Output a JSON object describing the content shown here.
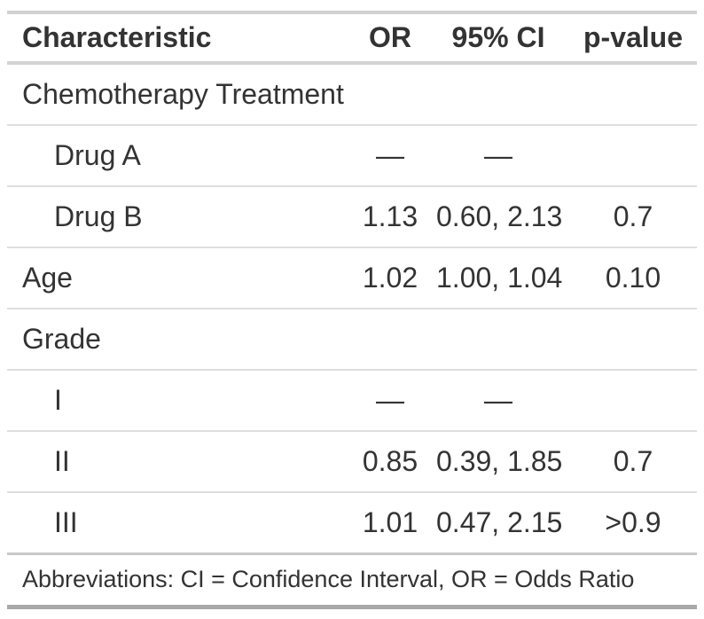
{
  "table": {
    "columns": [
      {
        "label": "Characteristic",
        "align": "left"
      },
      {
        "label": "OR",
        "align": "center"
      },
      {
        "label": "95% CI",
        "align": "center"
      },
      {
        "label": "p-value",
        "align": "center"
      }
    ],
    "rows": [
      {
        "label": "Chemotherapy Treatment",
        "or": "",
        "ci": "",
        "p": "",
        "indent": false,
        "group": true
      },
      {
        "label": "Drug A",
        "or": "—",
        "ci": "—",
        "p": "",
        "indent": true,
        "group": false
      },
      {
        "label": "Drug B",
        "or": "1.13",
        "ci": "0.60, 2.13",
        "p": "0.7",
        "indent": true,
        "group": false
      },
      {
        "label": "Age",
        "or": "1.02",
        "ci": "1.00, 1.04",
        "p": "0.10",
        "indent": false,
        "group": false
      },
      {
        "label": "Grade",
        "or": "",
        "ci": "",
        "p": "",
        "indent": false,
        "group": true
      },
      {
        "label": "I",
        "or": "—",
        "ci": "—",
        "p": "",
        "indent": true,
        "group": false
      },
      {
        "label": "II",
        "or": "0.85",
        "ci": "0.39, 1.85",
        "p": "0.7",
        "indent": true,
        "group": false
      },
      {
        "label": "III",
        "or": "1.01",
        "ci": "0.47, 2.15",
        "p": ">0.9",
        "indent": true,
        "group": false
      }
    ],
    "footnote": "Abbreviations: CI = Confidence Interval, OR = Odds Ratio"
  },
  "chart_data": {
    "type": "table",
    "title": "",
    "columns": [
      "Characteristic",
      "OR",
      "95% CI",
      "p-value"
    ],
    "rows": [
      [
        "Chemotherapy Treatment",
        "",
        "",
        ""
      ],
      [
        "Drug A",
        "—",
        "—",
        ""
      ],
      [
        "Drug B",
        "1.13",
        "0.60, 2.13",
        "0.7"
      ],
      [
        "Age",
        "1.02",
        "1.00, 1.04",
        "0.10"
      ],
      [
        "Grade",
        "",
        "",
        ""
      ],
      [
        "I",
        "—",
        "—",
        ""
      ],
      [
        "II",
        "0.85",
        "0.39, 1.85",
        "0.7"
      ],
      [
        "III",
        "1.01",
        "0.47, 2.15",
        ">0.9"
      ]
    ],
    "footnote": "Abbreviations: CI = Confidence Interval, OR = Odds Ratio"
  },
  "colors": {
    "text": "#333333",
    "background": "#FFFFFF",
    "table_border_top": "#D1D1D1",
    "header_underline": "#D3D3D3",
    "row_separator": "#DEDEDE",
    "footnote_separator": "#C8C8C8",
    "table_border_bottom": "#A9A9A9"
  }
}
